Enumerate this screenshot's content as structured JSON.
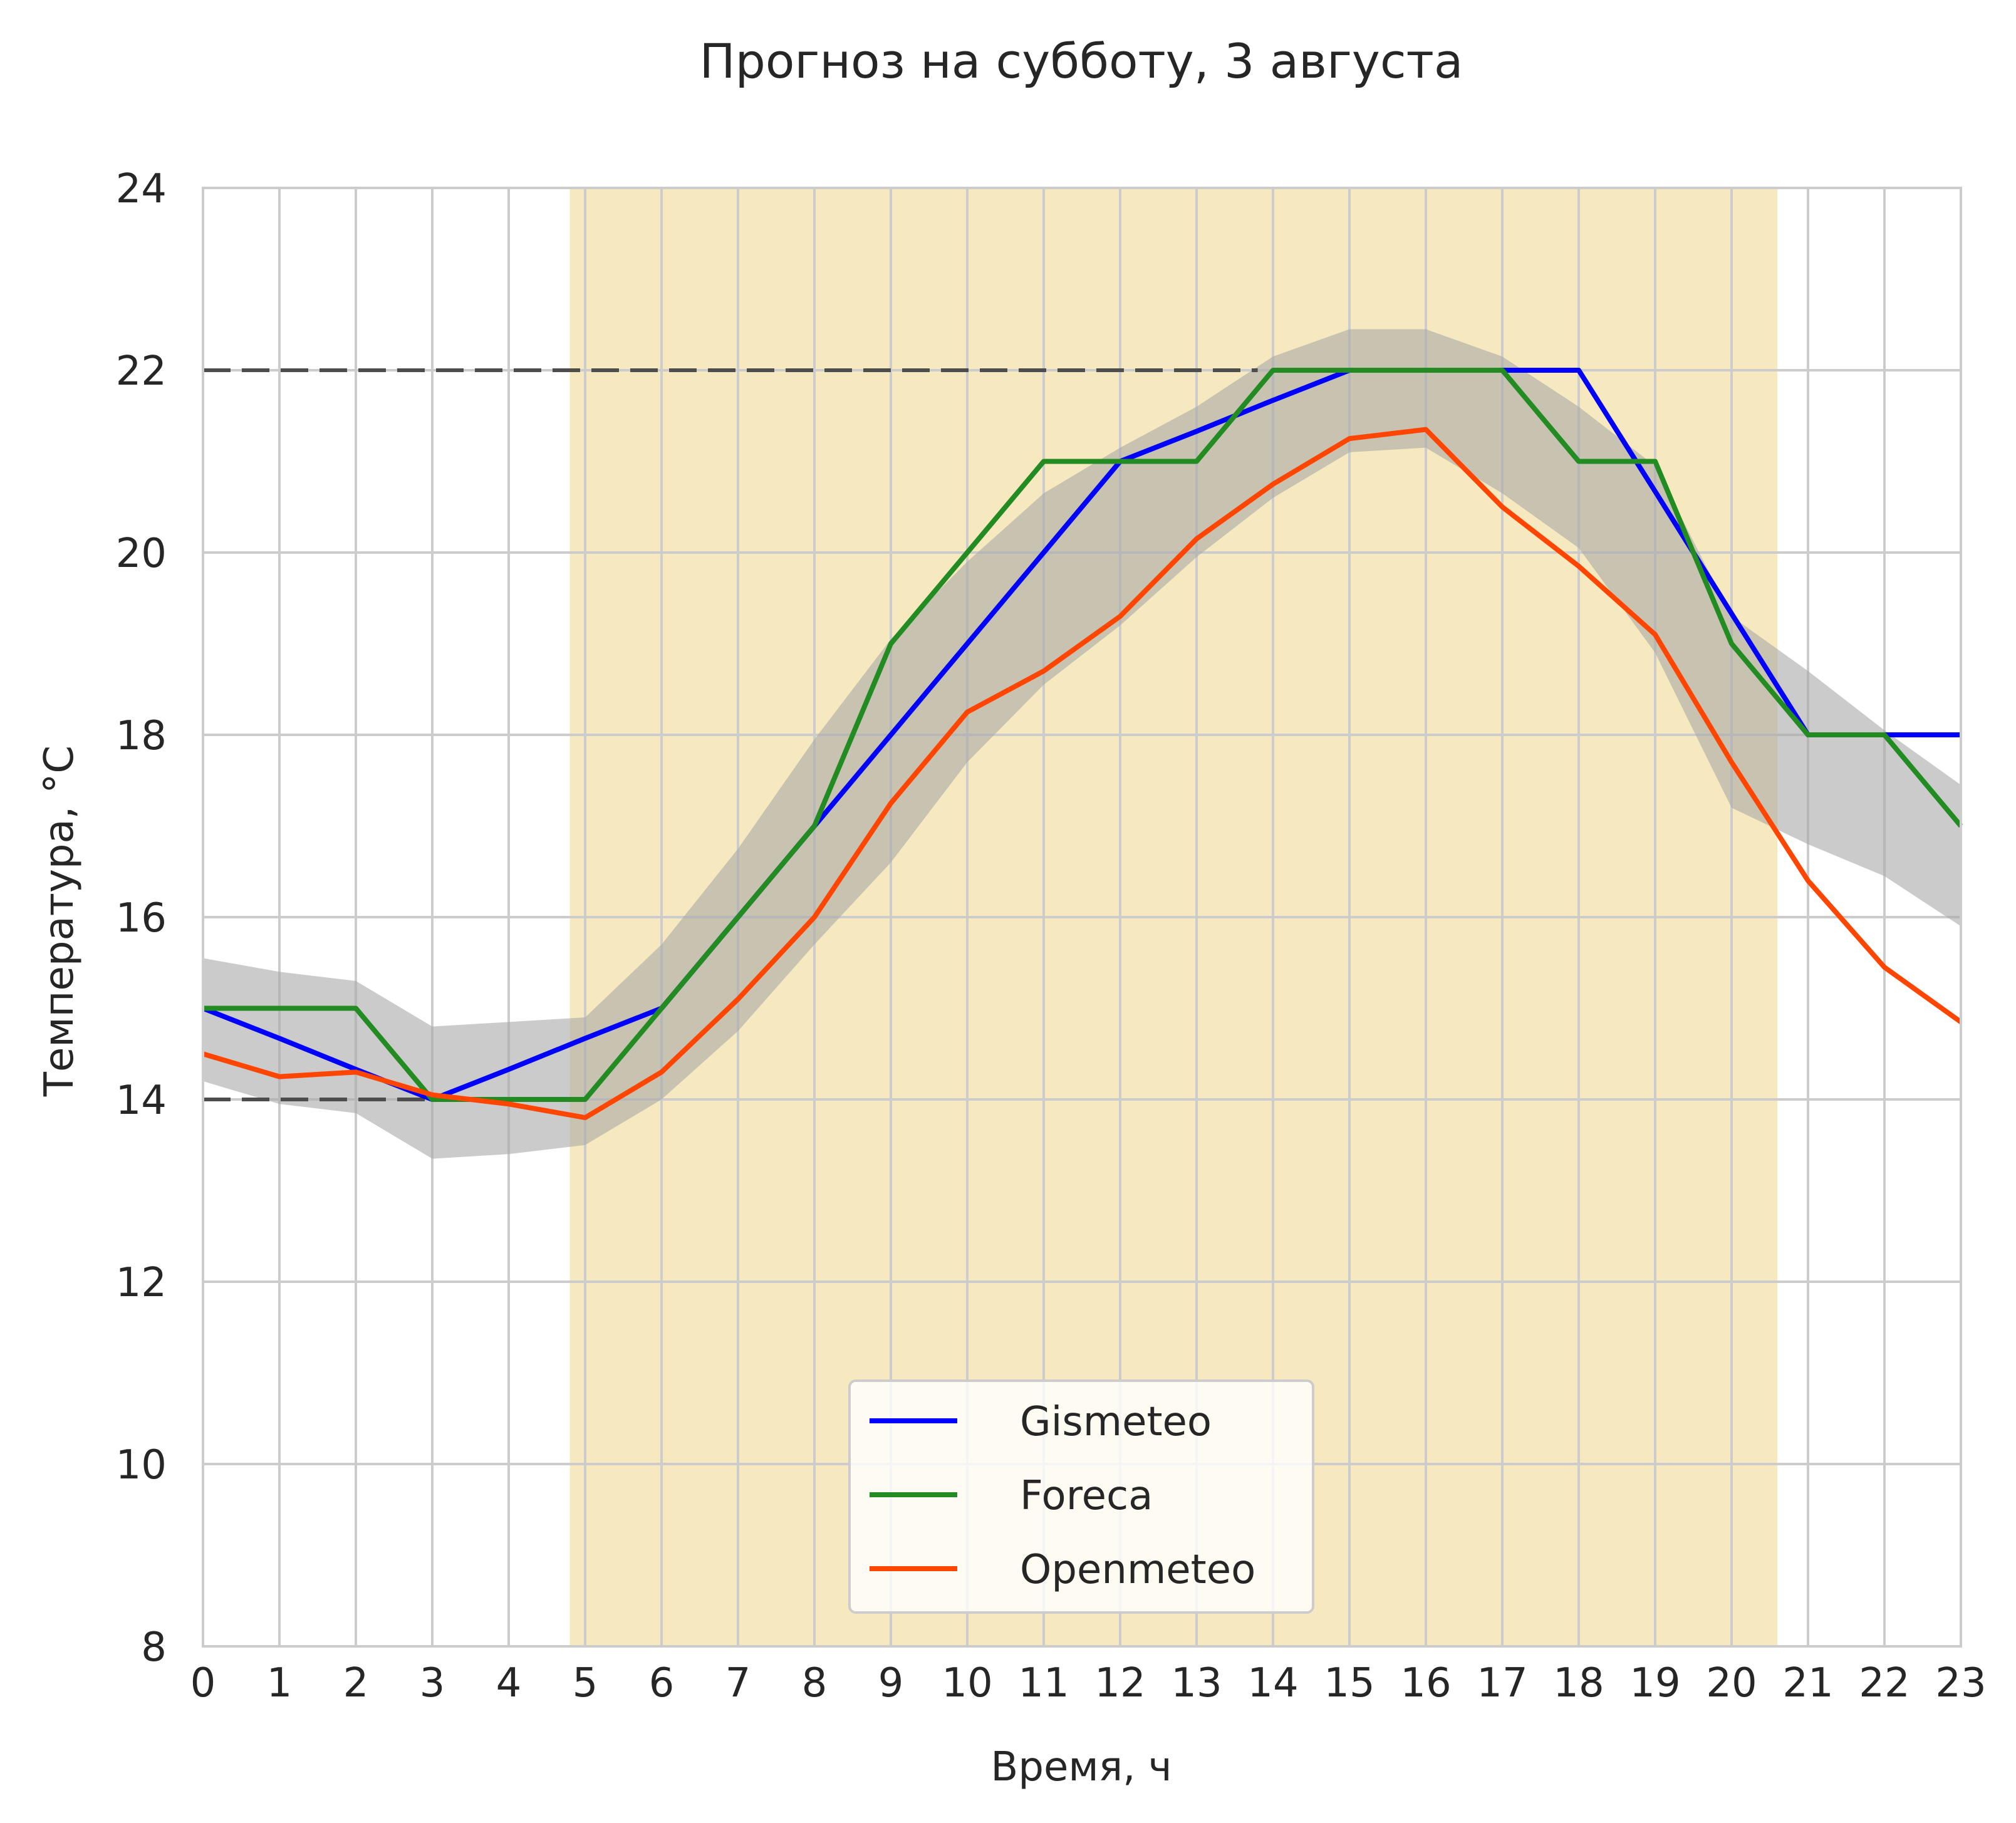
{
  "chart_data": {
    "type": "line",
    "title": "Прогноз на субботу,  3 августа",
    "xlabel": "Время, ч",
    "ylabel": "Температура, °C",
    "xlim": [
      0,
      23
    ],
    "ylim": [
      8,
      24
    ],
    "x_ticks": [
      "0",
      "1",
      "2",
      "3",
      "4",
      "5",
      "6",
      "7",
      "8",
      "9",
      "10",
      "11",
      "12",
      "13",
      "14",
      "15",
      "16",
      "17",
      "18",
      "19",
      "20",
      "21",
      "22",
      "23"
    ],
    "y_ticks": [
      "8",
      "10",
      "12",
      "14",
      "16",
      "18",
      "20",
      "22",
      "24"
    ],
    "grid": true,
    "legend_position": "lower center",
    "daylight_span": {
      "from": 4.8,
      "to": 20.6,
      "color": "#f7e9bf"
    },
    "reference_lines": [
      {
        "y": 22,
        "x_from": 0,
        "x_to": 13.8,
        "style": "dashed",
        "color": "#4d4d4d"
      },
      {
        "y": 14,
        "x_from": 0,
        "x_to": 5,
        "style": "dashed",
        "color": "#4d4d4d"
      }
    ],
    "spread_band": {
      "color": "#a9a9a9",
      "x": [
        0,
        1,
        2,
        3,
        4,
        5,
        6,
        7,
        8,
        9,
        10,
        11,
        12,
        13,
        14,
        15,
        16,
        17,
        18,
        19,
        20,
        21,
        22,
        23
      ],
      "lower": [
        14.2,
        13.95,
        13.85,
        13.35,
        13.4,
        13.5,
        14.0,
        14.75,
        15.7,
        16.6,
        17.7,
        18.55,
        19.2,
        19.95,
        20.6,
        21.1,
        21.15,
        20.65,
        20.05,
        18.9,
        17.2,
        16.8,
        16.45,
        15.9
      ],
      "upper": [
        15.55,
        15.4,
        15.3,
        14.8,
        14.85,
        14.9,
        15.7,
        16.75,
        17.95,
        19.05,
        19.9,
        20.65,
        21.15,
        21.6,
        22.15,
        22.45,
        22.45,
        22.15,
        21.6,
        20.95,
        19.3,
        18.7,
        18.05,
        17.45
      ]
    },
    "x": [
      0,
      1,
      2,
      3,
      4,
      5,
      6,
      7,
      8,
      9,
      10,
      11,
      12,
      13,
      14,
      15,
      16,
      17,
      18,
      19,
      20,
      21,
      22,
      23
    ],
    "series": [
      {
        "name": "Gismeteo",
        "color": "#0000ff",
        "values": [
          15,
          14.67,
          14.33,
          14,
          14.33,
          14.67,
          15,
          16,
          17,
          18,
          19,
          20,
          21,
          21.33,
          21.67,
          22,
          22,
          22,
          22,
          20.67,
          19.33,
          18,
          18,
          18
        ]
      },
      {
        "name": "Foreca",
        "color": "#228b22",
        "values": [
          15,
          15,
          15,
          14,
          14,
          14,
          15,
          16,
          17,
          19,
          20,
          21,
          21,
          21,
          22,
          22,
          22,
          22,
          21,
          21,
          19,
          18,
          18,
          17
        ]
      },
      {
        "name": "Openmeteo",
        "color": "#ff4500",
        "values": [
          14.5,
          14.25,
          14.3,
          14.05,
          13.95,
          13.8,
          14.3,
          15.1,
          16.0,
          17.25,
          18.25,
          18.7,
          19.3,
          20.15,
          20.75,
          21.25,
          21.35,
          20.5,
          19.85,
          19.1,
          17.7,
          16.4,
          15.45,
          14.85
        ]
      }
    ]
  }
}
